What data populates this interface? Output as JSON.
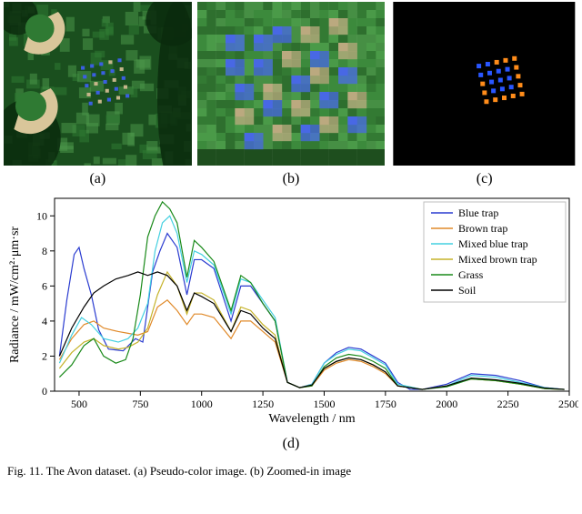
{
  "panel_a": {
    "caption": "(a)",
    "bg_color": "#1a4f1e",
    "grass_color": "#2f7a33",
    "light_grass": "#4b9648",
    "sand_color": "#d9c69a",
    "blue_trap": "#3a5fe0",
    "tan_trap": "#c5b58a",
    "shadow_color": "#0b2a0d"
  },
  "panel_b": {
    "caption": "(b)",
    "bg_color": "#3c8a3c",
    "grass_pixel_colors": [
      "#2e6f2e",
      "#3c8a3c",
      "#4a9a48",
      "#337a33",
      "#468f44"
    ],
    "blue_trap": "#4868e4",
    "tan_trap": "#bba97f",
    "shadow_row": "#1e4e1e"
  },
  "panel_c": {
    "caption": "(c)",
    "bg_color": "#000000",
    "blue": "#2956ff",
    "orange": "#ff8c1a"
  },
  "chart": {
    "caption": "(d)",
    "xlabel": "Wavelength / nm",
    "ylabel": "Radiance / mW/cm²·μm·sr",
    "xlim": [
      400,
      2500
    ],
    "ylim": [
      0,
      11
    ],
    "xticks": [
      500,
      750,
      1000,
      1250,
      1500,
      1750,
      2000,
      2250,
      2500
    ],
    "yticks": [
      0,
      2,
      4,
      6,
      8,
      10
    ],
    "label_fontsize": 14,
    "tick_fontsize": 12,
    "axis_color": "#000000",
    "legend_bg": "#ffffff",
    "legend_border": "#bfbfbf",
    "series": [
      {
        "name": "Blue trap",
        "color": "#2a3bd0",
        "data": [
          [
            420,
            2.0
          ],
          [
            450,
            5.2
          ],
          [
            480,
            7.8
          ],
          [
            500,
            8.2
          ],
          [
            520,
            7.0
          ],
          [
            550,
            5.5
          ],
          [
            580,
            3.5
          ],
          [
            620,
            2.4
          ],
          [
            680,
            2.3
          ],
          [
            730,
            3.0
          ],
          [
            760,
            2.8
          ],
          [
            800,
            6.8
          ],
          [
            830,
            8.0
          ],
          [
            860,
            9.0
          ],
          [
            900,
            8.2
          ],
          [
            940,
            5.5
          ],
          [
            970,
            7.5
          ],
          [
            1000,
            7.5
          ],
          [
            1050,
            7.0
          ],
          [
            1120,
            4.0
          ],
          [
            1160,
            6.0
          ],
          [
            1200,
            6.0
          ],
          [
            1250,
            5.0
          ],
          [
            1300,
            4.0
          ],
          [
            1350,
            0.5
          ],
          [
            1400,
            0.2
          ],
          [
            1450,
            0.4
          ],
          [
            1500,
            1.6
          ],
          [
            1550,
            2.2
          ],
          [
            1600,
            2.5
          ],
          [
            1650,
            2.4
          ],
          [
            1700,
            2.0
          ],
          [
            1750,
            1.6
          ],
          [
            1800,
            0.5
          ],
          [
            1850,
            0.1
          ],
          [
            1900,
            0.1
          ],
          [
            2000,
            0.4
          ],
          [
            2100,
            1.0
          ],
          [
            2200,
            0.9
          ],
          [
            2300,
            0.6
          ],
          [
            2400,
            0.2
          ],
          [
            2480,
            0.1
          ]
        ]
      },
      {
        "name": "Brown trap",
        "color": "#e08a2a",
        "data": [
          [
            420,
            1.8
          ],
          [
            470,
            3.0
          ],
          [
            520,
            3.8
          ],
          [
            560,
            4.0
          ],
          [
            600,
            3.6
          ],
          [
            660,
            3.4
          ],
          [
            700,
            3.3
          ],
          [
            740,
            3.2
          ],
          [
            780,
            3.4
          ],
          [
            820,
            4.8
          ],
          [
            860,
            5.2
          ],
          [
            900,
            4.6
          ],
          [
            940,
            3.8
          ],
          [
            970,
            4.4
          ],
          [
            1000,
            4.4
          ],
          [
            1050,
            4.2
          ],
          [
            1120,
            3.0
          ],
          [
            1160,
            4.0
          ],
          [
            1200,
            4.0
          ],
          [
            1250,
            3.4
          ],
          [
            1300,
            2.8
          ],
          [
            1350,
            0.5
          ],
          [
            1400,
            0.2
          ],
          [
            1450,
            0.3
          ],
          [
            1500,
            1.2
          ],
          [
            1550,
            1.6
          ],
          [
            1600,
            1.8
          ],
          [
            1650,
            1.7
          ],
          [
            1700,
            1.4
          ],
          [
            1750,
            1.0
          ],
          [
            1800,
            0.3
          ],
          [
            1900,
            0.1
          ],
          [
            2000,
            0.3
          ],
          [
            2100,
            0.7
          ],
          [
            2200,
            0.6
          ],
          [
            2300,
            0.4
          ],
          [
            2400,
            0.15
          ],
          [
            2480,
            0.1
          ]
        ]
      },
      {
        "name": "Mixed blue trap",
        "color": "#44d0e0",
        "data": [
          [
            420,
            1.6
          ],
          [
            470,
            3.2
          ],
          [
            510,
            4.2
          ],
          [
            550,
            3.8
          ],
          [
            600,
            3.0
          ],
          [
            660,
            2.8
          ],
          [
            700,
            3.0
          ],
          [
            740,
            3.6
          ],
          [
            780,
            5.0
          ],
          [
            810,
            8.0
          ],
          [
            840,
            9.6
          ],
          [
            870,
            10.0
          ],
          [
            900,
            9.0
          ],
          [
            940,
            6.2
          ],
          [
            970,
            8.0
          ],
          [
            1000,
            7.8
          ],
          [
            1050,
            7.2
          ],
          [
            1120,
            4.4
          ],
          [
            1160,
            6.4
          ],
          [
            1200,
            6.2
          ],
          [
            1250,
            5.2
          ],
          [
            1300,
            4.2
          ],
          [
            1350,
            0.5
          ],
          [
            1400,
            0.2
          ],
          [
            1450,
            0.4
          ],
          [
            1500,
            1.6
          ],
          [
            1550,
            2.1
          ],
          [
            1600,
            2.4
          ],
          [
            1650,
            2.3
          ],
          [
            1700,
            1.9
          ],
          [
            1750,
            1.5
          ],
          [
            1800,
            0.4
          ],
          [
            1900,
            0.1
          ],
          [
            2000,
            0.3
          ],
          [
            2100,
            0.9
          ],
          [
            2200,
            0.8
          ],
          [
            2300,
            0.5
          ],
          [
            2400,
            0.2
          ],
          [
            2480,
            0.1
          ]
        ]
      },
      {
        "name": "Mixed brown trap",
        "color": "#c5b32a",
        "data": [
          [
            420,
            1.3
          ],
          [
            470,
            2.2
          ],
          [
            520,
            2.8
          ],
          [
            560,
            3.0
          ],
          [
            600,
            2.6
          ],
          [
            660,
            2.4
          ],
          [
            700,
            2.5
          ],
          [
            740,
            2.8
          ],
          [
            780,
            3.6
          ],
          [
            820,
            5.5
          ],
          [
            860,
            6.8
          ],
          [
            900,
            6.0
          ],
          [
            940,
            4.4
          ],
          [
            970,
            5.6
          ],
          [
            1000,
            5.6
          ],
          [
            1050,
            5.2
          ],
          [
            1120,
            3.4
          ],
          [
            1160,
            4.8
          ],
          [
            1200,
            4.6
          ],
          [
            1250,
            3.8
          ],
          [
            1300,
            3.2
          ],
          [
            1350,
            0.5
          ],
          [
            1400,
            0.2
          ],
          [
            1450,
            0.35
          ],
          [
            1500,
            1.3
          ],
          [
            1550,
            1.7
          ],
          [
            1600,
            1.9
          ],
          [
            1650,
            1.8
          ],
          [
            1700,
            1.5
          ],
          [
            1750,
            1.1
          ],
          [
            1800,
            0.3
          ],
          [
            1900,
            0.1
          ],
          [
            2000,
            0.3
          ],
          [
            2100,
            0.7
          ],
          [
            2200,
            0.6
          ],
          [
            2300,
            0.4
          ],
          [
            2400,
            0.15
          ],
          [
            2480,
            0.1
          ]
        ]
      },
      {
        "name": "Grass",
        "color": "#1a8a1a",
        "data": [
          [
            420,
            0.8
          ],
          [
            470,
            1.5
          ],
          [
            520,
            2.6
          ],
          [
            560,
            3.0
          ],
          [
            600,
            2.0
          ],
          [
            650,
            1.6
          ],
          [
            690,
            1.8
          ],
          [
            720,
            3.0
          ],
          [
            750,
            5.5
          ],
          [
            780,
            8.8
          ],
          [
            810,
            10.0
          ],
          [
            840,
            10.8
          ],
          [
            870,
            10.4
          ],
          [
            900,
            9.6
          ],
          [
            940,
            6.5
          ],
          [
            970,
            8.6
          ],
          [
            1000,
            8.2
          ],
          [
            1050,
            7.4
          ],
          [
            1120,
            4.6
          ],
          [
            1160,
            6.6
          ],
          [
            1200,
            6.2
          ],
          [
            1250,
            5.0
          ],
          [
            1300,
            4.0
          ],
          [
            1350,
            0.5
          ],
          [
            1400,
            0.2
          ],
          [
            1450,
            0.3
          ],
          [
            1500,
            1.4
          ],
          [
            1550,
            1.9
          ],
          [
            1600,
            2.1
          ],
          [
            1650,
            2.0
          ],
          [
            1700,
            1.7
          ],
          [
            1750,
            1.3
          ],
          [
            1800,
            0.3
          ],
          [
            1900,
            0.1
          ],
          [
            2000,
            0.25
          ],
          [
            2100,
            0.7
          ],
          [
            2200,
            0.6
          ],
          [
            2300,
            0.4
          ],
          [
            2400,
            0.15
          ],
          [
            2480,
            0.1
          ]
        ]
      },
      {
        "name": "Soil",
        "color": "#000000",
        "data": [
          [
            420,
            2.0
          ],
          [
            470,
            3.6
          ],
          [
            520,
            4.8
          ],
          [
            560,
            5.6
          ],
          [
            600,
            6.0
          ],
          [
            650,
            6.4
          ],
          [
            700,
            6.6
          ],
          [
            740,
            6.8
          ],
          [
            780,
            6.6
          ],
          [
            820,
            6.8
          ],
          [
            860,
            6.6
          ],
          [
            900,
            6.0
          ],
          [
            940,
            4.6
          ],
          [
            970,
            5.6
          ],
          [
            1000,
            5.4
          ],
          [
            1050,
            5.0
          ],
          [
            1120,
            3.4
          ],
          [
            1160,
            4.6
          ],
          [
            1200,
            4.4
          ],
          [
            1250,
            3.6
          ],
          [
            1300,
            3.0
          ],
          [
            1350,
            0.5
          ],
          [
            1400,
            0.2
          ],
          [
            1450,
            0.35
          ],
          [
            1500,
            1.3
          ],
          [
            1550,
            1.7
          ],
          [
            1600,
            1.9
          ],
          [
            1650,
            1.8
          ],
          [
            1700,
            1.5
          ],
          [
            1750,
            1.1
          ],
          [
            1800,
            0.3
          ],
          [
            1900,
            0.1
          ],
          [
            2000,
            0.3
          ],
          [
            2100,
            0.75
          ],
          [
            2200,
            0.65
          ],
          [
            2300,
            0.45
          ],
          [
            2400,
            0.18
          ],
          [
            2480,
            0.1
          ]
        ]
      }
    ]
  },
  "figure_caption": "Fig. 11.   The Avon dataset. (a) Pseudo-color image. (b) Zoomed-in image"
}
